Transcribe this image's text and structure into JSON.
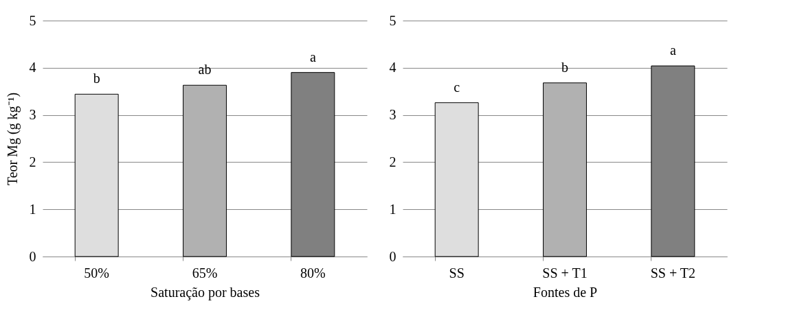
{
  "chart_data": [
    {
      "type": "bar",
      "xlabel": "Saturação por bases",
      "ylabel": "Teor Mg (g kg⁻¹)",
      "categories": [
        "50%",
        "65%",
        "80%"
      ],
      "values": [
        3.44,
        3.63,
        3.9
      ],
      "colors": [
        "#dedede",
        "#b1b1b1",
        "#808080"
      ],
      "ylim": [
        0,
        5
      ],
      "yticks": [
        0,
        1,
        2,
        3,
        4,
        5
      ],
      "grid": "y",
      "legend": false,
      "annotations": [
        {
          "text": "b",
          "x": "50%",
          "y": 3.44
        },
        {
          "text": "ab",
          "x": "65%",
          "y": 3.63
        },
        {
          "text": "a",
          "x": "80%",
          "y": 3.9
        }
      ]
    },
    {
      "type": "bar",
      "xlabel": "Fontes de P",
      "categories": [
        "SS",
        "SS + T1",
        "SS + T2"
      ],
      "values": [
        3.26,
        3.68,
        4.04
      ],
      "colors": [
        "#dedede",
        "#b1b1b1",
        "#808080"
      ],
      "ylim": [
        0,
        5
      ],
      "yticks": [
        0,
        1,
        2,
        3,
        4,
        5
      ],
      "grid": "y",
      "legend": false,
      "annotations": [
        {
          "text": "c",
          "x": "SS",
          "y": 3.26
        },
        {
          "text": "b",
          "x": "SS + T1",
          "y": 3.68
        },
        {
          "text": "a",
          "x": "SS + T2",
          "y": 4.04
        }
      ]
    }
  ]
}
